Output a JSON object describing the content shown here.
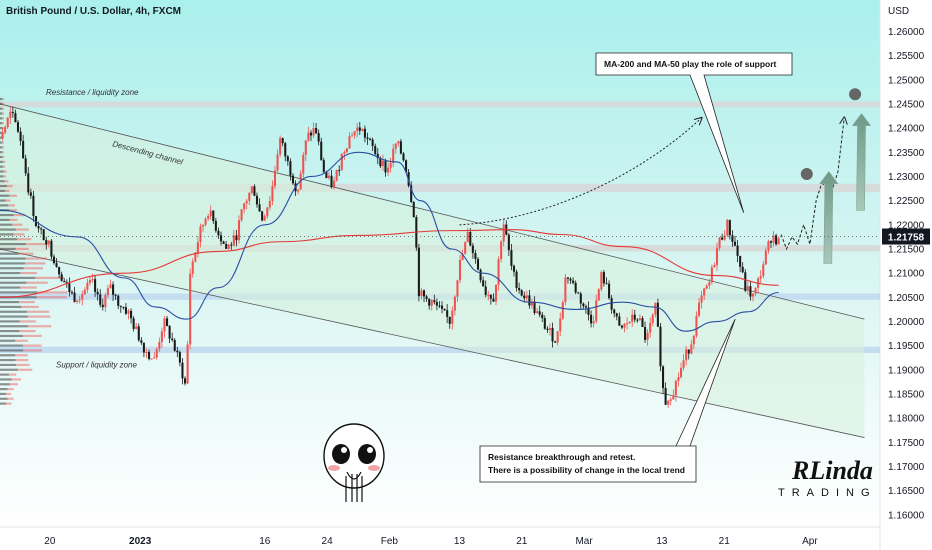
{
  "chart_data": {
    "type": "candlestick",
    "title": "British Pound / U.S. Dollar, 4h, FXCM",
    "currency_label": "USD",
    "current_price_label": "1.21758",
    "current_price": 1.21758,
    "ylim": [
      1.1575,
      1.2665
    ],
    "y_ticks": [
      "1.16000",
      "1.16500",
      "1.17000",
      "1.17500",
      "1.18000",
      "1.18500",
      "1.19000",
      "1.19500",
      "1.20000",
      "1.20500",
      "1.21000",
      "1.21500",
      "1.22000",
      "1.22500",
      "1.23000",
      "1.23500",
      "1.24000",
      "1.24500",
      "1.25000",
      "1.25500",
      "1.26000"
    ],
    "x_ticks": [
      {
        "label": "20",
        "bold": false,
        "x": 0.4
      },
      {
        "label": "2023",
        "bold": true,
        "x": 12
      },
      {
        "label": "16",
        "bold": false,
        "x": 28
      },
      {
        "label": "24",
        "bold": false,
        "x": 36
      },
      {
        "label": "Feb",
        "bold": false,
        "x": 44
      },
      {
        "label": "13",
        "bold": false,
        "x": 53
      },
      {
        "label": "21",
        "bold": false,
        "x": 61
      },
      {
        "label": "Mar",
        "bold": false,
        "x": 69
      },
      {
        "label": "13",
        "bold": false,
        "x": 79
      },
      {
        "label": "21",
        "bold": false,
        "x": 87
      },
      {
        "label": "Apr",
        "bold": false,
        "x": 98
      }
    ],
    "x_domain": [
      -6,
      107
    ],
    "bull_color": "#ef5350",
    "bear_color": "#1a1a1a",
    "price_path": [
      [
        -6,
        1.238
      ],
      [
        -4.6,
        1.243
      ],
      [
        -3.5,
        1.239
      ],
      [
        -2.3,
        1.227
      ],
      [
        -1.2,
        1.219
      ],
      [
        0,
        1.217
      ],
      [
        1.2,
        1.212
      ],
      [
        2.3,
        1.208
      ],
      [
        3.5,
        1.205
      ],
      [
        4.6,
        1.206
      ],
      [
        5.8,
        1.208
      ],
      [
        6.9,
        1.203
      ],
      [
        8.1,
        1.207
      ],
      [
        9.2,
        1.204
      ],
      [
        10.4,
        1.202
      ],
      [
        11.5,
        1.198
      ],
      [
        12.7,
        1.194
      ],
      [
        13.8,
        1.192
      ],
      [
        15,
        1.2
      ],
      [
        16.1,
        1.196
      ],
      [
        17.3,
        1.19
      ],
      [
        17.9,
        1.186
      ],
      [
        18.4,
        1.21
      ],
      [
        19.6,
        1.218
      ],
      [
        20.7,
        1.223
      ],
      [
        21.9,
        1.219
      ],
      [
        23,
        1.215
      ],
      [
        24.2,
        1.217
      ],
      [
        25.3,
        1.224
      ],
      [
        26.5,
        1.228
      ],
      [
        27.6,
        1.221
      ],
      [
        28.8,
        1.226
      ],
      [
        29.9,
        1.238
      ],
      [
        31.1,
        1.232
      ],
      [
        32.2,
        1.227
      ],
      [
        33.4,
        1.238
      ],
      [
        34.5,
        1.24
      ],
      [
        35.7,
        1.23
      ],
      [
        36.8,
        1.228
      ],
      [
        38,
        1.235
      ],
      [
        39.1,
        1.239
      ],
      [
        40.3,
        1.24
      ],
      [
        41.4,
        1.237
      ],
      [
        42.6,
        1.234
      ],
      [
        43.7,
        1.231
      ],
      [
        44.9,
        1.237
      ],
      [
        46,
        1.233
      ],
      [
        47.2,
        1.222
      ],
      [
        47.8,
        1.206
      ],
      [
        48.3,
        1.205
      ],
      [
        49.5,
        1.204
      ],
      [
        50.6,
        1.202
      ],
      [
        51.8,
        1.2
      ],
      [
        52.9,
        1.211
      ],
      [
        54.1,
        1.218
      ],
      [
        55.2,
        1.212
      ],
      [
        56.4,
        1.206
      ],
      [
        57.5,
        1.205
      ],
      [
        58.6,
        1.221
      ],
      [
        59.8,
        1.21
      ],
      [
        60.9,
        1.206
      ],
      [
        62.1,
        1.204
      ],
      [
        63.2,
        1.201
      ],
      [
        64.4,
        1.198
      ],
      [
        65.5,
        1.196
      ],
      [
        66.7,
        1.21
      ],
      [
        67.8,
        1.207
      ],
      [
        69,
        1.203
      ],
      [
        70.1,
        1.2
      ],
      [
        71.3,
        1.21
      ],
      [
        72.4,
        1.204
      ],
      [
        73.6,
        1.198
      ],
      [
        74.7,
        1.2
      ],
      [
        75.9,
        1.201
      ],
      [
        77,
        1.196
      ],
      [
        78.2,
        1.203
      ],
      [
        79.3,
        1.183
      ],
      [
        80.5,
        1.186
      ],
      [
        81.6,
        1.191
      ],
      [
        82.8,
        1.196
      ],
      [
        83.9,
        1.204
      ],
      [
        85.1,
        1.208
      ],
      [
        86.2,
        1.216
      ],
      [
        87.4,
        1.22
      ],
      [
        88.5,
        1.215
      ],
      [
        89.7,
        1.207
      ],
      [
        90.8,
        1.205
      ],
      [
        92,
        1.212
      ],
      [
        93.1,
        1.218
      ],
      [
        94.2,
        1.216
      ]
    ],
    "ma_200": [
      [
        -6,
        1.205
      ],
      [
        10,
        1.21
      ],
      [
        22,
        1.2145
      ],
      [
        30,
        1.2165
      ],
      [
        40,
        1.2178
      ],
      [
        52,
        1.2188
      ],
      [
        60,
        1.219
      ],
      [
        66,
        1.218
      ],
      [
        74,
        1.2155
      ],
      [
        86,
        1.2095
      ],
      [
        94,
        1.2075
      ]
    ],
    "ma_50": [
      [
        -6,
        1.223
      ],
      [
        4,
        1.2175
      ],
      [
        10,
        1.209
      ],
      [
        14,
        1.203
      ],
      [
        18,
        1.2005
      ],
      [
        22,
        1.207
      ],
      [
        28,
        1.22
      ],
      [
        34,
        1.23
      ],
      [
        40,
        1.235
      ],
      [
        45,
        1.233
      ],
      [
        48,
        1.225
      ],
      [
        52,
        1.215
      ],
      [
        56,
        1.21
      ],
      [
        62,
        1.204
      ],
      [
        68,
        1.2025
      ],
      [
        74,
        1.204
      ],
      [
        78,
        1.203
      ],
      [
        82,
        1.198
      ],
      [
        86,
        1.2
      ],
      [
        90,
        1.202
      ],
      [
        94,
        1.206
      ]
    ],
    "zones": [
      {
        "name": "resistance",
        "y0": 1.2443,
        "y1": 1.2455,
        "color": "#d7d7d7"
      },
      {
        "name": "mid-resistance",
        "y0": 1.2268,
        "y1": 1.2285,
        "color": "#d7d7d7"
      },
      {
        "name": "retest",
        "y0": 1.2145,
        "y1": 1.2158,
        "color": "#d7d7d7"
      },
      {
        "name": "support-blue-1",
        "y0": 1.2045,
        "y1": 1.2058,
        "color": "#c0d8f0"
      },
      {
        "name": "support-blue-2",
        "y0": 1.1935,
        "y1": 1.1948,
        "color": "#c0d8f0"
      }
    ],
    "channel": {
      "upper": [
        [
          -6,
          1.245
        ],
        [
          105,
          1.2005
        ]
      ],
      "lower": [
        [
          -6,
          1.215
        ],
        [
          105,
          1.176
        ]
      ],
      "fill": "#d7f0dc",
      "stroke": "#555"
    },
    "forecast_path": [
      [
        94.3,
        1.218
      ],
      [
        95,
        1.215
      ],
      [
        95.7,
        1.2175
      ],
      [
        96.4,
        1.216
      ],
      [
        97.2,
        1.22
      ],
      [
        98,
        1.216
      ],
      [
        98.8,
        1.225
      ],
      [
        99.4,
        1.228
      ],
      [
        100.2,
        1.229
      ],
      [
        100.8,
        1.227
      ],
      [
        101.6,
        1.231
      ],
      [
        102.4,
        1.242
      ]
    ],
    "forecast_dots": [
      [
        97.6,
        1.2305
      ],
      [
        103.8,
        1.247
      ]
    ],
    "forecast_arrows": [
      {
        "x": 100.3,
        "y0": 1.212,
        "y1": 1.231
      },
      {
        "x": 104.5,
        "y0": 1.223,
        "y1": 1.243
      }
    ],
    "curve_arrow": [
      [
        53,
        1.22
      ],
      [
        64,
        1.221
      ],
      [
        76,
        1.23
      ],
      [
        84,
        1.242
      ]
    ],
    "labels": {
      "resistance_zone": "Resistance / liquidity zone",
      "support_zone": "Support / liquidity zone",
      "channel": "Descending channel",
      "ma_callout": "MA-200 and MA-50 play the role of support",
      "retest_callout_1": "Resistance breakthrough and retest.",
      "retest_callout_2": "There is a possibility of change in the local trend"
    },
    "logo_text": {
      "top": "RLinda",
      "bottom": "TRADING"
    }
  }
}
